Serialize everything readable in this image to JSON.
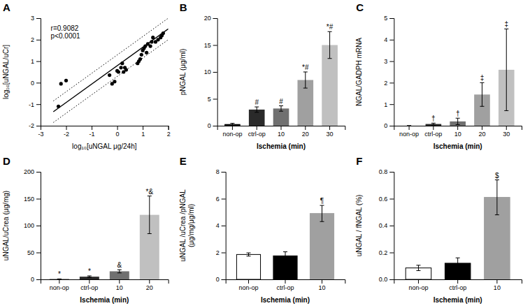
{
  "chart_data": [
    {
      "type": "scatter",
      "title": "A",
      "xlabel": "log₁₀[uNGAL μg/24h]",
      "ylabel": "log₁₀[uNGAL/uCr]",
      "xlim": [
        -3,
        2
      ],
      "ylim": [
        -2,
        3
      ],
      "xticks": [
        -3,
        -2,
        -1,
        0,
        1,
        2
      ],
      "yticks": [
        -2,
        -1,
        0,
        1,
        2,
        3
      ],
      "annotation": "r=0.9082\np<0.0001",
      "series": [
        {
          "type": "scatter",
          "color": "#000000",
          "marker": "circle",
          "x": [
            -2.3,
            -2.2,
            -2.0,
            -0.3,
            -0.2,
            -0.1,
            0.0,
            0.05,
            0.15,
            0.2,
            0.25,
            0.3,
            0.35,
            0.8,
            0.85,
            0.9,
            0.95,
            1.0,
            1.05,
            1.1,
            1.15,
            1.2,
            1.3,
            1.35,
            1.4,
            1.5,
            1.6,
            1.7,
            1.75,
            1.8
          ],
          "values": [
            -1.1,
            -0.05,
            0.1,
            0.35,
            -0.05,
            0.05,
            0.55,
            0.5,
            0.7,
            0.9,
            0.5,
            0.7,
            0.6,
            0.9,
            1.0,
            1.1,
            1.3,
            1.5,
            1.6,
            1.7,
            1.4,
            1.8,
            1.7,
            1.9,
            2.1,
            1.9,
            2.0,
            2.1,
            2.2,
            2.3
          ]
        },
        {
          "type": "line",
          "color": "#000000",
          "line_style": "solid",
          "x": [
            -2.5,
            2.0
          ],
          "values": [
            -1.35,
            2.5
          ]
        },
        {
          "type": "line",
          "color": "#000000",
          "line_style": "dotted",
          "x": [
            -2.5,
            2.0
          ],
          "values": [
            -0.85,
            3.0
          ]
        },
        {
          "type": "line",
          "color": "#000000",
          "line_style": "dotted",
          "x": [
            -2.5,
            2.0
          ],
          "values": [
            -1.85,
            2.0
          ]
        }
      ]
    },
    {
      "type": "bar",
      "title": "B",
      "ylabel": "pNGAL (μg/ml)",
      "xlabel": "Ischemia (min)",
      "categories": [
        "non-op",
        "ctrl-op",
        "10",
        "20",
        "30"
      ],
      "values": [
        0.3,
        3.0,
        3.2,
        8.5,
        15.0
      ],
      "errors": [
        0.15,
        0.5,
        0.5,
        1.5,
        2.5
      ],
      "colors": [
        "#000000",
        "#2a2a2a",
        "#707070",
        "#a0a0a0",
        "#c0c0c0"
      ],
      "ylim": [
        0,
        20
      ],
      "yticks": [
        0,
        5,
        10,
        15,
        20
      ],
      "annotations": [
        null,
        "#",
        "#",
        "*#",
        "*#"
      ]
    },
    {
      "type": "bar",
      "title": "C",
      "ylabel": "NGAL/GADPH mRNA",
      "xlabel": "Ischemia (min)",
      "categories": [
        "non-op",
        "ctrl-op",
        "10",
        "20",
        "30"
      ],
      "values": [
        0.0,
        0.08,
        0.2,
        1.45,
        2.6
      ],
      "errors": [
        0.0,
        0.04,
        0.15,
        0.55,
        1.9
      ],
      "colors": [
        "#000000",
        "#2a2a2a",
        "#707070",
        "#a0a0a0",
        "#c0c0c0"
      ],
      "ylim": [
        0,
        5
      ],
      "yticks": [
        0,
        1,
        2,
        3,
        4,
        5
      ],
      "annotations": [
        null,
        "†",
        "†",
        "‡",
        "‡"
      ]
    },
    {
      "type": "bar",
      "title": "D",
      "ylabel": "uNGAL/uCrea (μg/mg)",
      "xlabel": "Ischemia (min)",
      "categories": [
        "non-op",
        "ctrl-op",
        "10",
        "20"
      ],
      "values": [
        0.5,
        5.0,
        15.0,
        120.0
      ],
      "errors": [
        0.3,
        1.5,
        3.0,
        35.0
      ],
      "colors": [
        "#000000",
        "#2a2a2a",
        "#707070",
        "#c0c0c0"
      ],
      "ylim": [
        0,
        200
      ],
      "yticks": [
        0,
        50,
        100,
        150,
        200
      ],
      "annotations": [
        "*",
        "*",
        "&",
        "*&"
      ]
    },
    {
      "type": "bar",
      "title": "E",
      "ylabel": "uNGAL /uCrea /pNGAL\n(μg/mg/μg/ml)",
      "xlabel": "Ischemia (min)",
      "categories": [
        "non-op",
        "ctrl-op",
        "10"
      ],
      "values": [
        1.85,
        1.75,
        4.9
      ],
      "errors": [
        0.12,
        0.3,
        0.6
      ],
      "colors": [
        "#ffffff",
        "#000000",
        "#a0a0a0"
      ],
      "edge_colors": [
        "#000000",
        "#000000",
        "#a0a0a0"
      ],
      "ylim": [
        0,
        8
      ],
      "yticks": [
        0,
        2,
        4,
        6,
        8
      ],
      "annotations": [
        null,
        null,
        "¶"
      ]
    },
    {
      "type": "bar",
      "title": "F",
      "ylabel": "uNGAL / fNGAL (%)",
      "xlabel": "Ischemia (min)",
      "categories": [
        "non-op",
        "ctrl-op",
        "10"
      ],
      "values": [
        0.085,
        0.12,
        0.61
      ],
      "errors": [
        0.02,
        0.04,
        0.13
      ],
      "colors": [
        "#ffffff",
        "#000000",
        "#a0a0a0"
      ],
      "edge_colors": [
        "#000000",
        "#000000",
        "#a0a0a0"
      ],
      "ylim": [
        0,
        0.8
      ],
      "yticks": [
        {
          "value": 0,
          "label": "0.0"
        },
        0.2,
        0.4,
        0.6,
        0.8
      ],
      "annotations": [
        null,
        null,
        "$"
      ]
    }
  ]
}
